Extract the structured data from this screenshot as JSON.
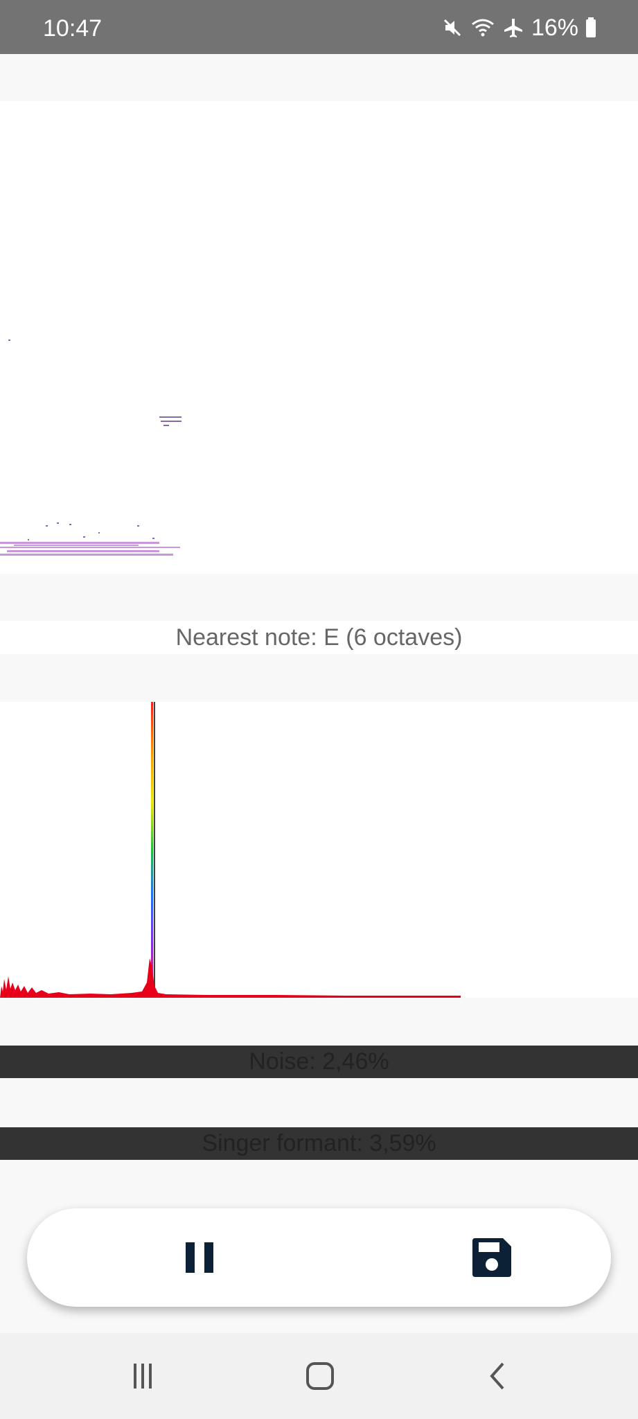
{
  "status_bar": {
    "time": "10:47",
    "battery_percent": "16%",
    "icons": [
      "mute-icon",
      "wifi-icon",
      "airplane-icon",
      "battery-icon"
    ]
  },
  "analysis": {
    "nearest_note": "Nearest note: E  (6 octaves)",
    "noise": "Noise: 2,46%",
    "singer_formant": "Singer formant: 3,59%"
  },
  "controls": {
    "pause_icon": "pause-icon",
    "save_icon": "save-icon"
  },
  "navigation": {
    "icons": [
      "recents-icon",
      "home-icon",
      "back-icon"
    ]
  },
  "colors": {
    "status_bar": "#737373",
    "metric_bar": "#333333",
    "control_icon": "#0d2136",
    "spectrum_base": "#e8001a"
  }
}
